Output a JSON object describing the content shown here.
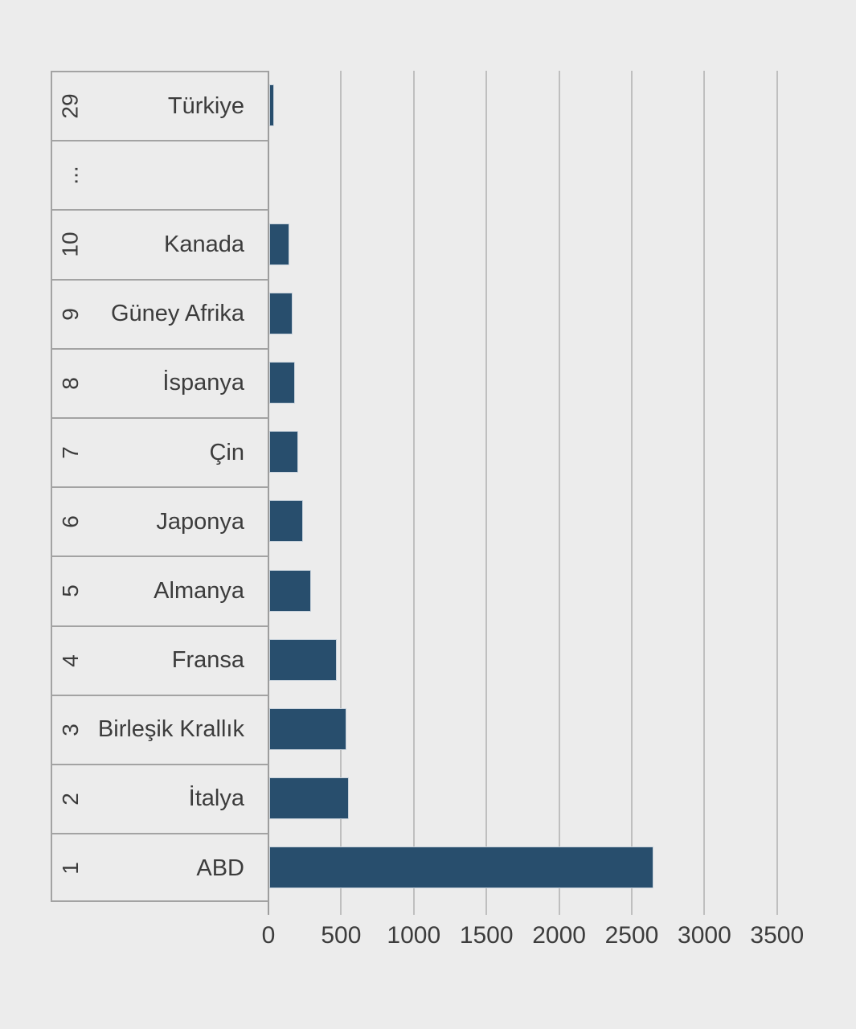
{
  "chart_data": {
    "type": "bar",
    "orientation": "horizontal",
    "title": "",
    "xlabel": "",
    "ylabel": "",
    "rows": [
      {
        "rank": "29",
        "label": "Türkiye",
        "value": 35
      },
      {
        "rank": "...",
        "label": "",
        "value": null
      },
      {
        "rank": "10",
        "label": "Kanada",
        "value": 140
      },
      {
        "rank": "9",
        "label": "Güney Afrika",
        "value": 160
      },
      {
        "rank": "8",
        "label": "İspanya",
        "value": 175
      },
      {
        "rank": "7",
        "label": "Çin",
        "value": 200
      },
      {
        "rank": "6",
        "label": "Japonya",
        "value": 230
      },
      {
        "rank": "5",
        "label": "Almanya",
        "value": 290
      },
      {
        "rank": "4",
        "label": "Fransa",
        "value": 465
      },
      {
        "rank": "3",
        "label": "Birleşik Krallık",
        "value": 530
      },
      {
        "rank": "2",
        "label": "İtalya",
        "value": 550
      },
      {
        "rank": "1",
        "label": "ABD",
        "value": 2645
      }
    ],
    "x_axis": {
      "tick_labels": [
        "0",
        "500",
        "1000",
        "1500",
        "2000",
        "2500",
        "3000",
        "3500"
      ],
      "tick_values": [
        0,
        500,
        1000,
        1500,
        2000,
        2500,
        3000,
        3500
      ],
      "min": 0,
      "max": 3680,
      "grid": true
    },
    "legend": null,
    "colors": {
      "bar": "#284e6d",
      "bar_edge": "#c9d3dc",
      "background": "#ececec",
      "grid": "#bfbfbf",
      "axis": "#9d9d9d",
      "separator": "#a3a3a3",
      "text": "#3c3c3c"
    }
  }
}
